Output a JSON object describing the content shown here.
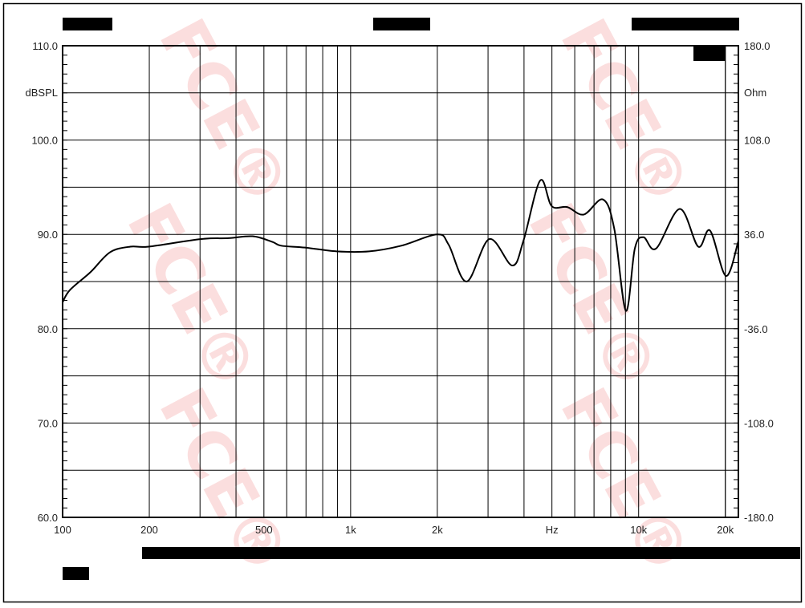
{
  "watermark": "FCE®",
  "chart_data": {
    "type": "line",
    "title": "",
    "xlabel": "Hz",
    "ylabel": "dBSPL",
    "y2label": "Ohm",
    "xscale": "log",
    "xlim": [
      100,
      22200
    ],
    "ylim": [
      60,
      110
    ],
    "y2lim": [
      -180,
      180
    ],
    "grid": true,
    "x_tick_labels": [
      {
        "value": 100,
        "label": "100"
      },
      {
        "value": 200,
        "label": "200"
      },
      {
        "value": 500,
        "label": "500"
      },
      {
        "value": 1000,
        "label": "1k"
      },
      {
        "value": 2000,
        "label": "2k"
      },
      {
        "value": 5000,
        "label": "Hz"
      },
      {
        "value": 10000,
        "label": "10k"
      },
      {
        "value": 20000,
        "label": "20k"
      }
    ],
    "y_tick_labels": [
      "110.0",
      "100.0",
      "90.0",
      "80.0",
      "70.0",
      "60.0"
    ],
    "y2_tick_labels": [
      "180.0",
      "108.0",
      "36.0",
      "-36.0",
      "-108.0",
      "-180.0"
    ],
    "series": [
      {
        "color": "#000000",
        "x": [
          100,
          106,
          125,
          146,
          172,
          199,
          301,
          377,
          457,
          535,
          574,
          695,
          894,
          1160,
          1500,
          2000,
          2190,
          2530,
          3030,
          3640,
          3980,
          4550,
          4990,
          5650,
          6450,
          7520,
          8230,
          9030,
          9700,
          10400,
          11500,
          13900,
          16100,
          17700,
          20100,
          22200
        ],
        "y": [
          82.8,
          84.1,
          86.0,
          88.1,
          88.7,
          88.7,
          89.5,
          89.6,
          89.8,
          89.2,
          88.8,
          88.6,
          88.2,
          88.2,
          88.8,
          90.0,
          88.9,
          85.0,
          89.5,
          86.7,
          89.3,
          95.7,
          93.0,
          92.9,
          92.1,
          93.7,
          90.6,
          81.9,
          88.5,
          89.7,
          88.5,
          92.7,
          88.7,
          90.4,
          85.6,
          89.3
        ]
      }
    ]
  }
}
